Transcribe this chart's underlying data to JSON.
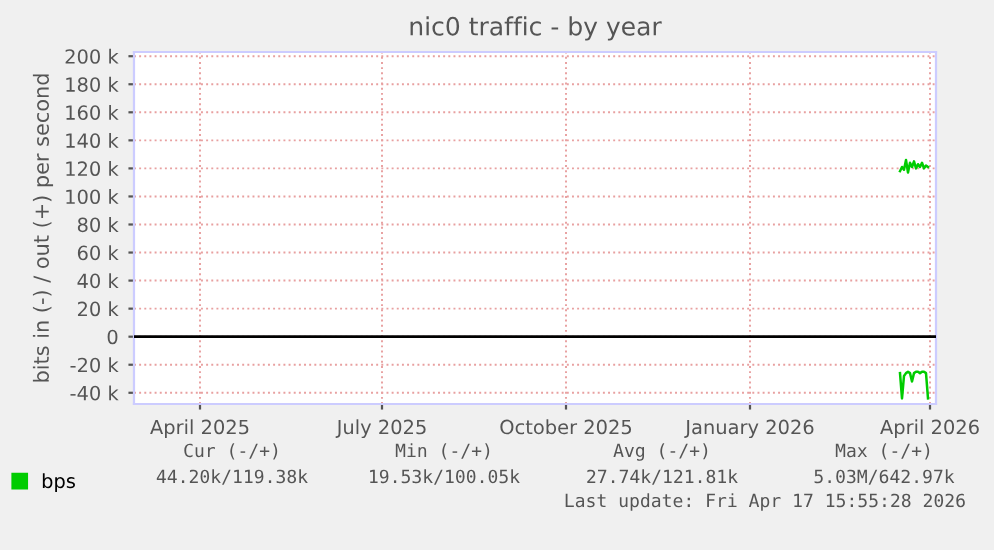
{
  "chart_data": {
    "type": "line",
    "title": "nic0 traffic - by year",
    "ylabel": "bits in (-) / out (+) per second",
    "xlim": [
      "2025-02-27",
      "2026-04-04"
    ],
    "xticks": [
      {
        "value": "2025-04-01",
        "label": "April 2025"
      },
      {
        "value": "2025-07-01",
        "label": "July 2025"
      },
      {
        "value": "2025-10-01",
        "label": "October 2025"
      },
      {
        "value": "2026-01-01",
        "label": "January 2026"
      },
      {
        "value": "2026-04-01",
        "label": "April 2026"
      }
    ],
    "ylim": [
      -48000,
      203000
    ],
    "yticks": [
      {
        "value": -40000,
        "label": "-40 k"
      },
      {
        "value": -20000,
        "label": "-20 k"
      },
      0,
      {
        "value": 20000,
        "label": "20 k"
      },
      {
        "value": 40000,
        "label": "40 k"
      },
      {
        "value": 60000,
        "label": "60 k"
      },
      {
        "value": 80000,
        "label": "80 k"
      },
      {
        "value": 100000,
        "label": "100 k"
      },
      {
        "value": 120000,
        "label": "120 k"
      },
      {
        "value": 140000,
        "label": "140 k"
      },
      {
        "value": 160000,
        "label": "160 k"
      },
      {
        "value": 180000,
        "label": "180 k"
      },
      {
        "value": 200000,
        "label": "200 k"
      }
    ],
    "grid": true,
    "legend": "bottom left",
    "series": [
      {
        "name": "bps",
        "color": "#00cc00",
        "x": [
          "2026-03-17",
          "2026-03-18",
          "2026-03-19",
          "2026-03-20",
          "2026-03-21",
          "2026-03-22",
          "2026-03-23",
          "2026-03-24",
          "2026-03-25",
          "2026-03-26",
          "2026-03-27",
          "2026-03-28",
          "2026-03-29",
          "2026-03-30",
          "2026-03-31"
        ],
        "values": [
          118000,
          121000,
          119000,
          126000,
          117000,
          124000,
          121000,
          125000,
          120000,
          123000,
          121000,
          124000,
          120000,
          122000,
          121000
        ]
      },
      {
        "color": "#00cc00",
        "x": [
          "2026-03-17",
          "2026-03-18",
          "2026-03-19",
          "2026-03-20",
          "2026-03-21",
          "2026-03-22",
          "2026-03-23",
          "2026-03-24",
          "2026-03-25",
          "2026-03-26",
          "2026-03-27",
          "2026-03-28",
          "2026-03-29",
          "2026-03-30",
          "2026-03-31"
        ],
        "values": [
          -26000,
          -44000,
          -28000,
          -26000,
          -25000,
          -26000,
          -32000,
          -26000,
          -25000,
          -25000,
          -26000,
          -25000,
          -25000,
          -26000,
          -44000
        ]
      }
    ],
    "ref_lines": [
      {
        "axis": "y",
        "value": 0,
        "color": "#000000"
      }
    ],
    "annotations": [
      "Cur (-/+)",
      "Min (-/+)",
      "Avg (-/+)",
      "Max (-/+)",
      "44.20k/119.38k",
      "19.53k/100.05k",
      "27.74k/121.81k",
      "5.03M/642.97k",
      "Last update: Fri Apr 17 15:55:28 2026"
    ]
  }
}
